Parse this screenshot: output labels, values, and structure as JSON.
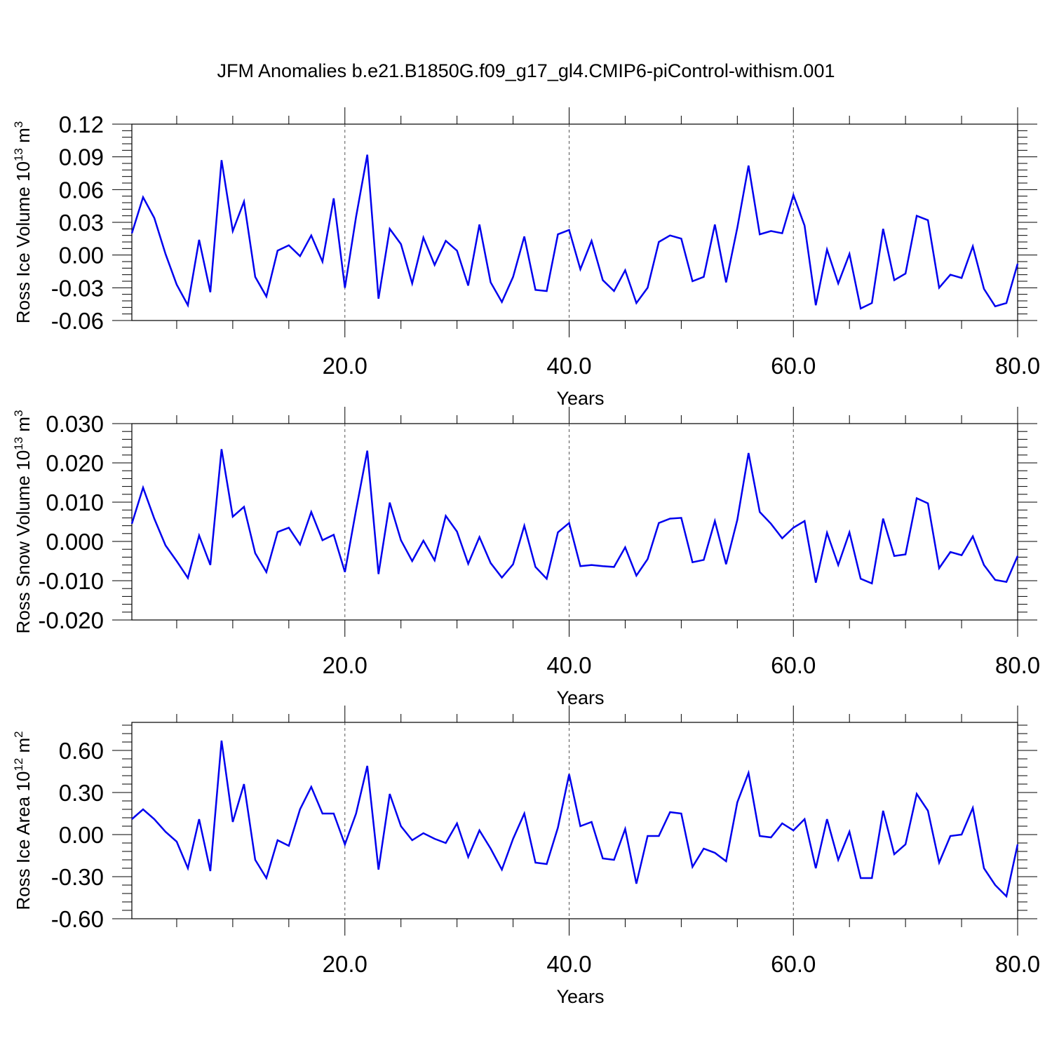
{
  "title": "JFM Anomalies b.e21.B1850G.f09_g17_gl4.CMIP6-piControl-withism.001",
  "colors": {
    "line": "#0000ee",
    "axis": "#000000"
  },
  "chart_data": [
    {
      "type": "line",
      "ylabel": "Ross Ice Volume 10",
      "ylabel_exp": "13",
      "ylabel_unit": " m",
      "ylabel_unit_exp": "3",
      "xlabel": "Years",
      "xlim": [
        1,
        80
      ],
      "ylim": [
        -0.06,
        0.12
      ],
      "yticks": [
        -0.06,
        -0.03,
        0.0,
        0.03,
        0.06,
        0.09,
        0.12
      ],
      "ytick_labels": [
        "-0.06",
        "-0.03",
        "0.00",
        "0.03",
        "0.06",
        "0.09",
        "0.12"
      ],
      "xticks": [
        20,
        40,
        60,
        80
      ],
      "xtick_labels": [
        "20.0",
        "40.0",
        "60.0",
        "80.0"
      ],
      "grid_x": [
        20,
        40,
        60
      ],
      "x_start": 1,
      "values": [
        0.02,
        0.053,
        0.034,
        0.001,
        -0.027,
        -0.046,
        0.014,
        -0.034,
        0.087,
        0.022,
        0.049,
        -0.02,
        -0.038,
        0.004,
        0.009,
        -0.001,
        0.018,
        -0.006,
        0.052,
        -0.03,
        0.035,
        0.092,
        -0.04,
        0.024,
        0.01,
        -0.026,
        0.016,
        -0.009,
        0.013,
        0.004,
        -0.028,
        0.028,
        -0.025,
        -0.043,
        -0.02,
        0.017,
        -0.032,
        -0.033,
        0.019,
        0.023,
        -0.013,
        0.013,
        -0.023,
        -0.033,
        -0.014,
        -0.044,
        -0.03,
        0.012,
        0.018,
        0.015,
        -0.024,
        -0.02,
        0.028,
        -0.025,
        0.025,
        0.082,
        0.019,
        0.022,
        0.02,
        0.055,
        0.027,
        -0.046,
        0.005,
        -0.026,
        0.001,
        -0.049,
        -0.044,
        0.024,
        -0.023,
        -0.017,
        0.036,
        0.032,
        -0.03,
        -0.018,
        -0.021,
        0.008,
        -0.031,
        -0.047,
        -0.044,
        -0.008
      ]
    },
    {
      "type": "line",
      "ylabel": "Ross Snow Volume 10",
      "ylabel_exp": "13",
      "ylabel_unit": " m",
      "ylabel_unit_exp": "3",
      "xlabel": "Years",
      "xlim": [
        1,
        80
      ],
      "ylim": [
        -0.02,
        0.03
      ],
      "yticks": [
        -0.02,
        -0.01,
        0.0,
        0.01,
        0.02,
        0.03
      ],
      "ytick_labels": [
        "-0.020",
        "-0.010",
        "0.000",
        "0.010",
        "0.020",
        "0.030"
      ],
      "xticks": [
        20,
        40,
        60,
        80
      ],
      "xtick_labels": [
        "20.0",
        "40.0",
        "60.0",
        "80.0"
      ],
      "grid_x": [
        20,
        40,
        60
      ],
      "x_start": 1,
      "values": [
        0.0045,
        0.0137,
        0.0058,
        -0.001,
        -0.005,
        -0.0093,
        0.0015,
        -0.006,
        0.0235,
        0.0063,
        0.0088,
        -0.003,
        -0.0078,
        0.0024,
        0.0035,
        -0.0008,
        0.0075,
        0.0003,
        0.0017,
        -0.0078,
        0.008,
        0.0231,
        -0.0083,
        0.0099,
        0.0003,
        -0.005,
        0.0002,
        -0.0048,
        0.0065,
        0.0025,
        -0.0057,
        0.0011,
        -0.0055,
        -0.0092,
        -0.0058,
        0.004,
        -0.0065,
        -0.0095,
        0.0023,
        0.0047,
        -0.0063,
        -0.006,
        -0.0063,
        -0.0065,
        -0.0015,
        -0.0087,
        -0.0045,
        0.0047,
        0.0058,
        0.006,
        -0.0053,
        -0.0047,
        0.0052,
        -0.0058,
        0.0055,
        0.0225,
        0.0075,
        0.0045,
        0.0008,
        0.0035,
        0.0052,
        -0.0105,
        0.0022,
        -0.006,
        0.0023,
        -0.0095,
        -0.0107,
        0.0058,
        -0.0037,
        -0.0033,
        0.011,
        0.0097,
        -0.0068,
        -0.0027,
        -0.0035,
        0.0013,
        -0.006,
        -0.0098,
        -0.0103,
        -0.0037
      ]
    },
    {
      "type": "line",
      "ylabel": "Ross Ice Area 10",
      "ylabel_exp": "12",
      "ylabel_unit": " m",
      "ylabel_unit_exp": "2",
      "xlabel": "Years",
      "xlim": [
        1,
        80
      ],
      "ylim": [
        -0.6,
        0.8
      ],
      "yticks": [
        -0.6,
        -0.3,
        0.0,
        0.3,
        0.6
      ],
      "ytick_labels": [
        "-0.60",
        "-0.30",
        "0.00",
        "0.30",
        "0.60"
      ],
      "xticks": [
        20,
        40,
        60,
        80
      ],
      "xtick_labels": [
        "20.0",
        "40.0",
        "60.0",
        "80.0"
      ],
      "grid_x": [
        20,
        40,
        60
      ],
      "x_start": 1,
      "values": [
        0.11,
        0.18,
        0.11,
        0.02,
        -0.05,
        -0.24,
        0.11,
        -0.26,
        0.67,
        0.09,
        0.36,
        -0.18,
        -0.31,
        -0.04,
        -0.08,
        0.18,
        0.34,
        0.15,
        0.15,
        -0.07,
        0.15,
        0.49,
        -0.25,
        0.29,
        0.06,
        -0.04,
        0.01,
        -0.03,
        -0.06,
        0.08,
        -0.16,
        0.03,
        -0.1,
        -0.25,
        -0.03,
        0.15,
        -0.2,
        -0.21,
        0.05,
        0.43,
        0.06,
        0.09,
        -0.17,
        -0.18,
        0.04,
        -0.35,
        -0.01,
        -0.01,
        0.16,
        0.15,
        -0.23,
        -0.1,
        -0.13,
        -0.19,
        0.23,
        0.44,
        -0.01,
        -0.02,
        0.08,
        0.03,
        0.11,
        -0.24,
        0.11,
        -0.18,
        0.02,
        -0.31,
        -0.31,
        0.17,
        -0.14,
        -0.07,
        0.29,
        0.17,
        -0.2,
        -0.01,
        0.0,
        0.19,
        -0.24,
        -0.36,
        -0.44,
        -0.07
      ]
    }
  ]
}
